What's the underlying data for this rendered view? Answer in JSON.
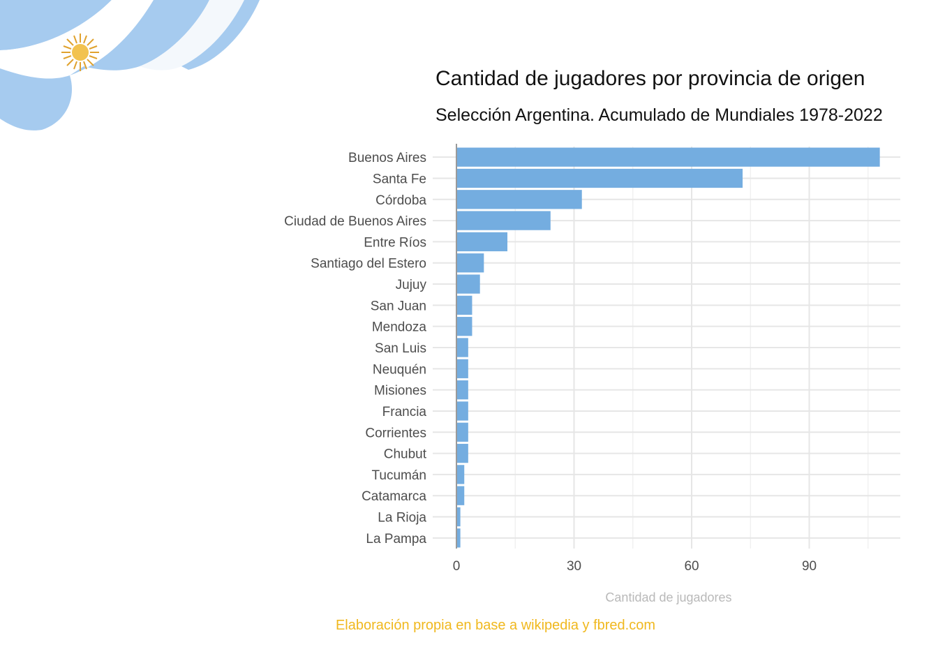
{
  "chart_data": {
    "type": "bar",
    "orientation": "horizontal",
    "title": "Cantidad de jugadores por provincia de origen",
    "subtitle": "Selección Argentina. Acumulado de Mundiales 1978-2022",
    "xlabel": "Cantidad de jugadores",
    "ylabel": "",
    "caption": "Elaboración propia en base a wikipedia y fbred.com",
    "categories": [
      "Buenos Aires",
      "Santa Fe",
      "Córdoba",
      "Ciudad de Buenos Aires",
      "Entre Ríos",
      "Santiago del Estero",
      "Jujuy",
      "San Juan",
      "Mendoza",
      "San Luis",
      "Neuquén",
      "Misiones",
      "Francia",
      "Corrientes",
      "Chubut",
      "Tucumán",
      "Catamarca",
      "La Rioja",
      "La Pampa"
    ],
    "values": [
      108,
      73,
      32,
      24,
      13,
      7,
      6,
      4,
      4,
      3,
      3,
      3,
      3,
      3,
      3,
      2,
      2,
      1,
      1
    ],
    "xlim": [
      0,
      113
    ],
    "xticks": [
      0,
      30,
      60,
      90
    ],
    "grid": true,
    "bar_color": "#74ade0"
  }
}
